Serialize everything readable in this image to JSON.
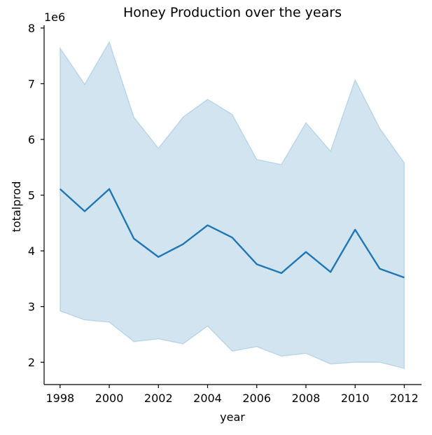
{
  "chart_data": {
    "type": "line",
    "title": "Honey Production over the years",
    "xlabel": "year",
    "ylabel": "totalprod",
    "y_offset_label": "1e6",
    "x_ticks": [
      "1998",
      "2000",
      "2002",
      "2004",
      "2006",
      "2008",
      "2010",
      "2012"
    ],
    "y_ticks": [
      "2",
      "3",
      "4",
      "5",
      "6",
      "7",
      "8"
    ],
    "xlim": [
      1997.35,
      2012.7
    ],
    "ylim": [
      1.6,
      8.05
    ],
    "grid": false,
    "series": [
      {
        "color": "#1f77b4",
        "x": [
          1998,
          1999,
          2000,
          2001,
          2002,
          2003,
          2004,
          2005,
          2006,
          2007,
          2008,
          2009,
          2010,
          2011,
          2012
        ],
        "values": [
          5.11,
          4.71,
          5.11,
          4.22,
          3.89,
          4.12,
          4.46,
          4.24,
          3.76,
          3.6,
          3.98,
          3.62,
          4.38,
          3.68,
          3.52
        ],
        "ci_upper": [
          7.64,
          6.99,
          7.75,
          6.4,
          5.84,
          6.4,
          6.72,
          6.45,
          5.64,
          5.55,
          6.3,
          5.79,
          7.07,
          6.2,
          5.58
        ],
        "ci_lower": [
          2.92,
          2.76,
          2.72,
          2.37,
          2.42,
          2.33,
          2.65,
          2.2,
          2.28,
          2.11,
          2.16,
          1.97,
          2.0,
          2.0,
          1.89
        ]
      }
    ]
  }
}
